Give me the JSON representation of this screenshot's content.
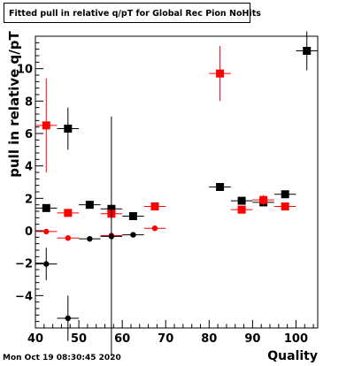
{
  "chart_data": {
    "type": "scatter",
    "title": "Fitted pull in relative q/pT for Global Rec Pion NoHits",
    "xlabel": "Quality",
    "ylabel": "pull in relative q/pT",
    "xlim": [
      40,
      105
    ],
    "ylim": [
      -6,
      12
    ],
    "xticks": [
      "40",
      "50",
      "60",
      "70",
      "80",
      "90",
      "100"
    ],
    "yticks": [
      "−4",
      "−2",
      "0",
      "2",
      "4",
      "6",
      "8",
      "10"
    ],
    "grid": false,
    "series": [
      {
        "color": "#000000",
        "marker": "square",
        "points": [
          {
            "x": 42.5,
            "y": 1.4,
            "yerr": 0.1
          },
          {
            "x": 47.5,
            "y": 6.3,
            "yerr": 1.3
          },
          {
            "x": 52.5,
            "y": 1.6,
            "yerr": 0.1
          },
          {
            "x": 57.5,
            "y": 1.35,
            "yerr": 0.1
          },
          {
            "x": 62.5,
            "y": 0.9,
            "yerr": 0.1
          },
          {
            "x": 82.5,
            "y": 2.7,
            "yerr": 0.1
          },
          {
            "x": 87.5,
            "y": 1.85,
            "yerr": 0.1
          },
          {
            "x": 92.5,
            "y": 1.75,
            "yerr": 0.1
          },
          {
            "x": 97.5,
            "y": 2.25,
            "yerr": 0.1
          },
          {
            "x": 102.5,
            "y": 11.1,
            "yerr": 1.2
          }
        ]
      },
      {
        "color": "#ff0000",
        "marker": "square",
        "points": [
          {
            "x": 42.5,
            "y": 6.5,
            "yerr": 2.9
          },
          {
            "x": 47.5,
            "y": 1.1,
            "yerr": 0.1
          },
          {
            "x": 57.5,
            "y": 1.05,
            "yerr": 0.3
          },
          {
            "x": 67.5,
            "y": 1.5,
            "yerr": 0.1
          },
          {
            "x": 82.5,
            "y": 9.7,
            "yerr": 1.7
          },
          {
            "x": 87.5,
            "y": 1.3,
            "yerr": 0.1
          },
          {
            "x": 92.5,
            "y": 1.9,
            "yerr": 0.3
          },
          {
            "x": 97.5,
            "y": 1.5,
            "yerr": 0.1
          }
        ]
      },
      {
        "color": "#ff0000",
        "marker": "circle",
        "points": [
          {
            "x": 42.5,
            "y": -0.05,
            "yerr": 0.1
          },
          {
            "x": 47.5,
            "y": -0.45,
            "yerr": 0.1
          },
          {
            "x": 57.5,
            "y": -0.3,
            "yerr": 0.1
          },
          {
            "x": 67.5,
            "y": 0.15,
            "yerr": 0.1
          }
        ]
      },
      {
        "color": "#000000",
        "marker": "circle",
        "points": [
          {
            "x": 42.5,
            "y": -2.05,
            "yerr": 1.0
          },
          {
            "x": 47.5,
            "y": -5.4,
            "yerr": 1.4
          },
          {
            "x": 52.5,
            "y": -0.5,
            "yerr": 0.1
          },
          {
            "x": 57.5,
            "y": -0.35,
            "yerr": 7.4
          },
          {
            "x": 62.5,
            "y": -0.25,
            "yerr": 0.1
          }
        ]
      }
    ]
  },
  "footer": {
    "timestamp": "Mon Oct 19 08:30:45 2020"
  }
}
